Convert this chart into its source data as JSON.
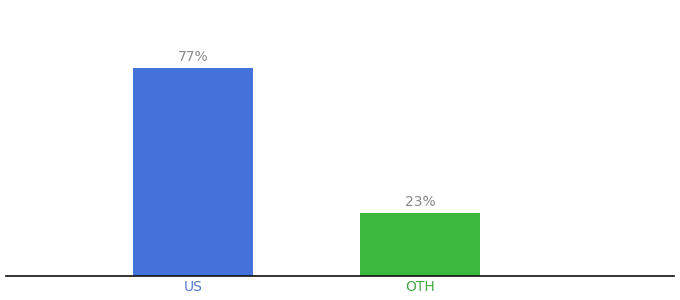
{
  "categories": [
    "US",
    "OTH"
  ],
  "values": [
    77,
    23
  ],
  "bar_colors": [
    "#4472db",
    "#3cb83c"
  ],
  "bar_labels": [
    "77%",
    "23%"
  ],
  "label_color": "#888888",
  "tick_color_us": "#5577cc",
  "tick_color_oth": "#44aa44",
  "ylim": [
    0,
    100
  ],
  "background_color": "#ffffff",
  "label_fontsize": 10,
  "tick_fontsize": 10,
  "bar_width": 0.18,
  "x_positions": [
    0.28,
    0.62
  ],
  "xlim": [
    0.0,
    1.0
  ]
}
